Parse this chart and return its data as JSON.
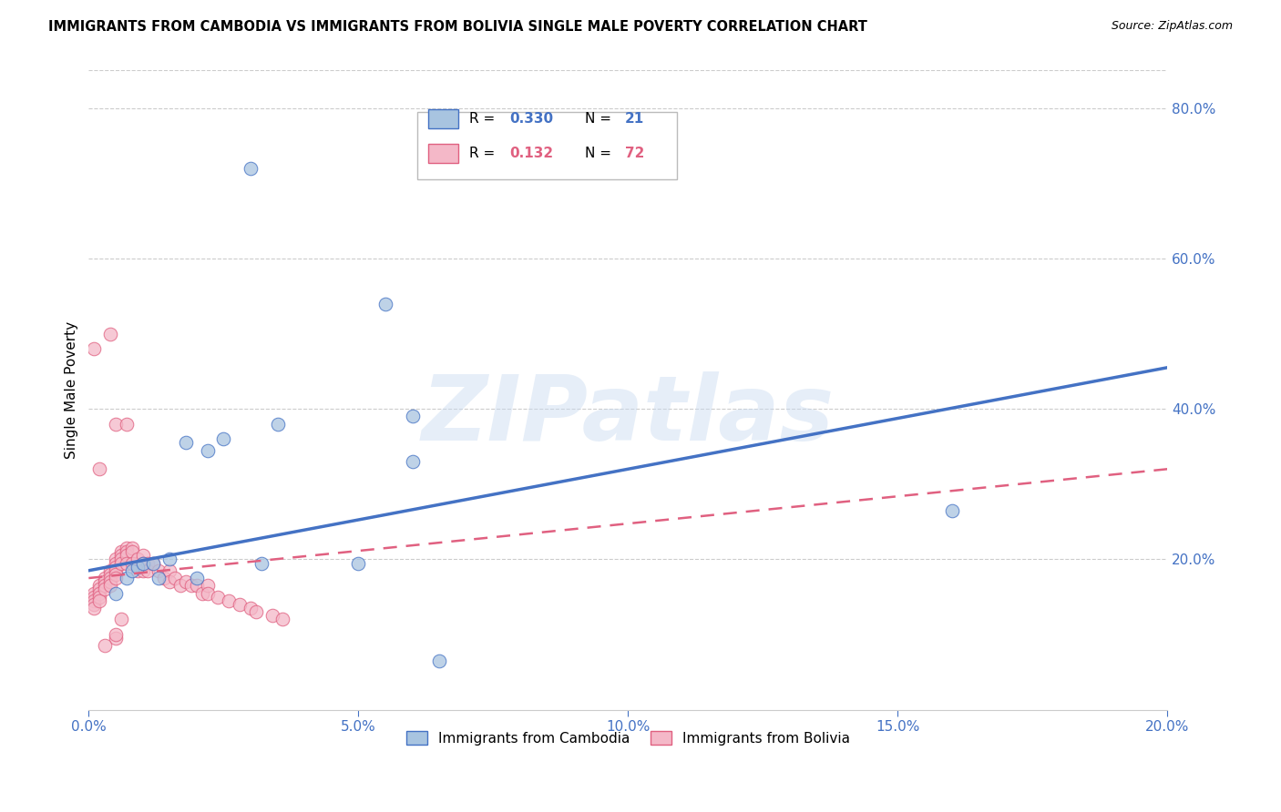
{
  "title": "IMMIGRANTS FROM CAMBODIA VS IMMIGRANTS FROM BOLIVIA SINGLE MALE POVERTY CORRELATION CHART",
  "source": "Source: ZipAtlas.com",
  "ylabel": "Single Male Poverty",
  "xlim": [
    0.0,
    0.2
  ],
  "ylim": [
    0.0,
    0.85
  ],
  "xtick_vals": [
    0.0,
    0.05,
    0.1,
    0.15,
    0.2
  ],
  "xtick_labels": [
    "0.0%",
    "5.0%",
    "10.0%",
    "15.0%",
    "20.0%"
  ],
  "ytick_vals_right": [
    0.2,
    0.4,
    0.6,
    0.8
  ],
  "ytick_labels_right": [
    "20.0%",
    "40.0%",
    "60.0%",
    "80.0%"
  ],
  "color_cambodia": "#a8c4e0",
  "color_bolivia": "#f4b8c8",
  "line_color_cambodia": "#4472c4",
  "line_color_bolivia": "#e06080",
  "background_color": "#ffffff",
  "watermark": "ZIPatlas",
  "cam_R": "0.330",
  "cam_N": "21",
  "bol_R": "0.132",
  "bol_N": "72",
  "scatter_cambodia_x": [
    0.005,
    0.007,
    0.008,
    0.009,
    0.01,
    0.012,
    0.013,
    0.015,
    0.018,
    0.02,
    0.022,
    0.025,
    0.03,
    0.032,
    0.035,
    0.05,
    0.055,
    0.06,
    0.065,
    0.16,
    0.06
  ],
  "scatter_cambodia_y": [
    0.155,
    0.175,
    0.185,
    0.19,
    0.195,
    0.195,
    0.175,
    0.2,
    0.355,
    0.175,
    0.345,
    0.36,
    0.72,
    0.195,
    0.38,
    0.195,
    0.54,
    0.33,
    0.065,
    0.265,
    0.39
  ],
  "scatter_bolivia_x": [
    0.001,
    0.001,
    0.001,
    0.001,
    0.001,
    0.002,
    0.002,
    0.002,
    0.002,
    0.002,
    0.003,
    0.003,
    0.003,
    0.003,
    0.004,
    0.004,
    0.004,
    0.004,
    0.004,
    0.005,
    0.005,
    0.005,
    0.005,
    0.005,
    0.005,
    0.006,
    0.006,
    0.006,
    0.006,
    0.007,
    0.007,
    0.007,
    0.007,
    0.008,
    0.008,
    0.008,
    0.009,
    0.009,
    0.01,
    0.01,
    0.01,
    0.011,
    0.011,
    0.012,
    0.013,
    0.014,
    0.015,
    0.015,
    0.016,
    0.017,
    0.018,
    0.019,
    0.02,
    0.021,
    0.022,
    0.022,
    0.024,
    0.026,
    0.028,
    0.03,
    0.031,
    0.034,
    0.036,
    0.004,
    0.005,
    0.005,
    0.001,
    0.002,
    0.003,
    0.005,
    0.006,
    0.007
  ],
  "scatter_bolivia_y": [
    0.155,
    0.15,
    0.145,
    0.14,
    0.135,
    0.165,
    0.16,
    0.155,
    0.15,
    0.145,
    0.175,
    0.17,
    0.165,
    0.16,
    0.185,
    0.18,
    0.175,
    0.17,
    0.165,
    0.2,
    0.195,
    0.19,
    0.185,
    0.18,
    0.175,
    0.21,
    0.205,
    0.2,
    0.195,
    0.215,
    0.21,
    0.205,
    0.195,
    0.215,
    0.21,
    0.195,
    0.2,
    0.185,
    0.205,
    0.195,
    0.185,
    0.195,
    0.185,
    0.195,
    0.185,
    0.175,
    0.185,
    0.17,
    0.175,
    0.165,
    0.17,
    0.165,
    0.165,
    0.155,
    0.165,
    0.155,
    0.15,
    0.145,
    0.14,
    0.135,
    0.13,
    0.125,
    0.12,
    0.5,
    0.38,
    0.095,
    0.48,
    0.32,
    0.085,
    0.1,
    0.12,
    0.38
  ]
}
